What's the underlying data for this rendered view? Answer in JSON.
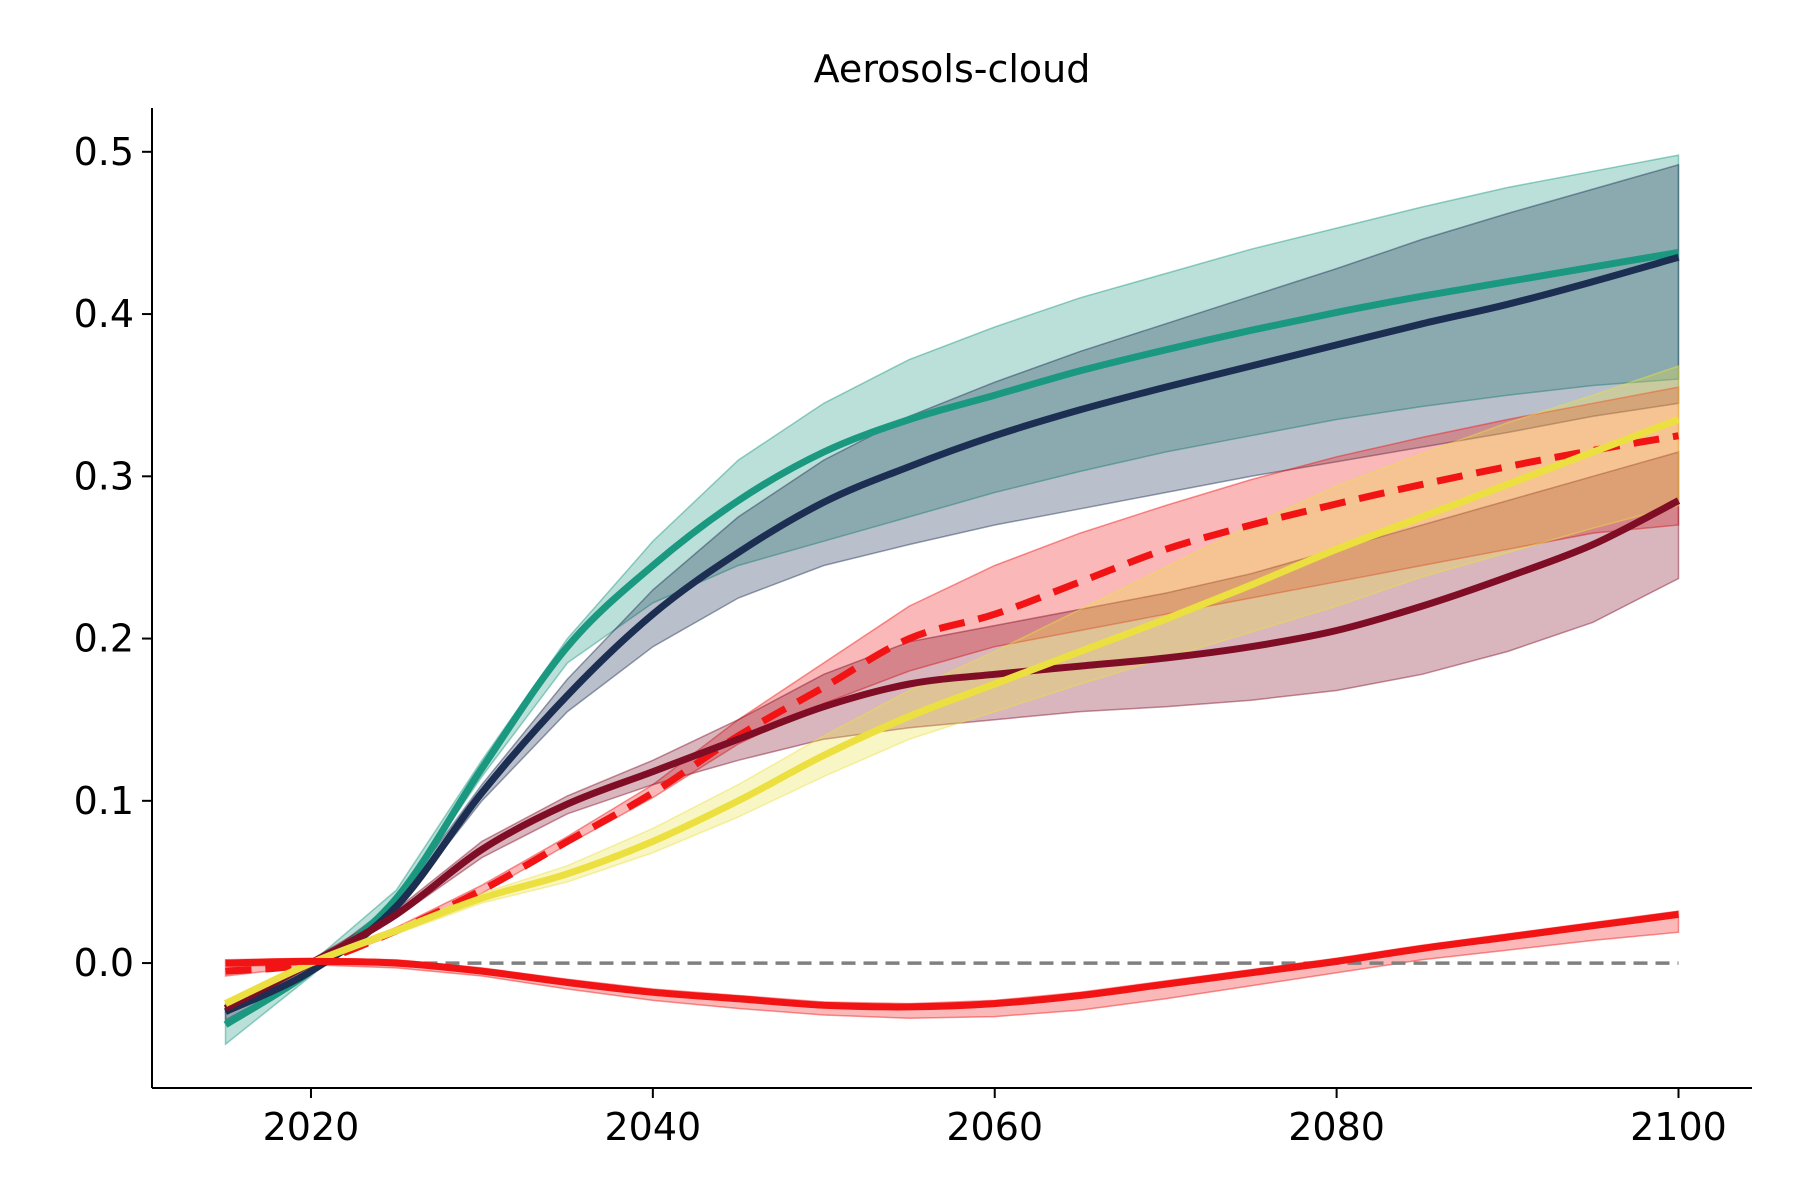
{
  "chart_data": {
    "type": "line",
    "title": "Aerosols-cloud",
    "xlabel": "",
    "ylabel": "",
    "xlim": [
      2010.7,
      2104.3
    ],
    "ylim": [
      -0.077,
      0.527
    ],
    "x_ticks": [
      2020,
      2040,
      2060,
      2080,
      2100
    ],
    "y_ticks": [
      0.0,
      0.1,
      0.2,
      0.3,
      0.4,
      0.5
    ],
    "y_tick_labels": [
      "0.0",
      "0.1",
      "0.2",
      "0.3",
      "0.4",
      "0.5"
    ],
    "grid": false,
    "legend": "none",
    "reference_line": {
      "y": 0.0,
      "style": "dashed",
      "color": "#808080"
    },
    "x": [
      2015,
      2020,
      2025,
      2030,
      2035,
      2040,
      2045,
      2050,
      2055,
      2060,
      2065,
      2070,
      2075,
      2080,
      2085,
      2090,
      2095,
      2100
    ],
    "series": [
      {
        "color": "#1a9980",
        "style": "solid",
        "values": [
          -0.038,
          -0.005,
          0.04,
          0.12,
          0.195,
          0.245,
          0.285,
          0.315,
          0.335,
          0.35,
          0.365,
          0.378,
          0.39,
          0.401,
          0.411,
          0.42,
          0.429,
          0.438
        ],
        "band": {
          "lower": [
            -0.05,
            -0.008,
            0.038,
            0.115,
            0.185,
            0.222,
            0.245,
            0.26,
            0.275,
            0.29,
            0.303,
            0.315,
            0.325,
            0.335,
            0.343,
            0.35,
            0.356,
            0.36
          ],
          "upper": [
            -0.03,
            0.0,
            0.045,
            0.125,
            0.2,
            0.26,
            0.31,
            0.345,
            0.372,
            0.392,
            0.41,
            0.425,
            0.44,
            0.453,
            0.466,
            0.478,
            0.488,
            0.498
          ]
        }
      },
      {
        "color": "#1c2e52",
        "style": "solid",
        "values": [
          -0.03,
          -0.005,
          0.035,
          0.105,
          0.165,
          0.215,
          0.253,
          0.284,
          0.306,
          0.325,
          0.341,
          0.355,
          0.368,
          0.381,
          0.394,
          0.406,
          0.42,
          0.435
        ],
        "band": {
          "lower": [
            -0.035,
            -0.007,
            0.033,
            0.1,
            0.155,
            0.195,
            0.225,
            0.245,
            0.258,
            0.27,
            0.28,
            0.29,
            0.3,
            0.309,
            0.318,
            0.327,
            0.337,
            0.345
          ],
          "upper": [
            -0.027,
            -0.002,
            0.038,
            0.11,
            0.175,
            0.23,
            0.275,
            0.31,
            0.337,
            0.358,
            0.377,
            0.394,
            0.411,
            0.428,
            0.446,
            0.462,
            0.477,
            0.492
          ]
        }
      },
      {
        "color": "#f21414",
        "style": "dashed",
        "values": [
          -0.005,
          0.0,
          0.02,
          0.045,
          0.075,
          0.105,
          0.14,
          0.17,
          0.2,
          0.215,
          0.235,
          0.255,
          0.27,
          0.283,
          0.295,
          0.306,
          0.316,
          0.325
        ],
        "band": {
          "lower": [
            -0.008,
            -0.002,
            0.018,
            0.043,
            0.073,
            0.102,
            0.135,
            0.16,
            0.18,
            0.195,
            0.205,
            0.215,
            0.225,
            0.235,
            0.245,
            0.255,
            0.265,
            0.27
          ],
          "upper": [
            -0.003,
            0.002,
            0.022,
            0.048,
            0.078,
            0.11,
            0.15,
            0.185,
            0.22,
            0.245,
            0.265,
            0.282,
            0.298,
            0.312,
            0.324,
            0.335,
            0.345,
            0.355
          ]
        }
      },
      {
        "color": "#800d26",
        "style": "solid",
        "values": [
          -0.028,
          0.0,
          0.03,
          0.07,
          0.098,
          0.118,
          0.138,
          0.158,
          0.172,
          0.178,
          0.183,
          0.188,
          0.195,
          0.205,
          0.22,
          0.238,
          0.258,
          0.285
        ],
        "band": {
          "lower": [
            -0.03,
            -0.002,
            0.028,
            0.065,
            0.092,
            0.11,
            0.125,
            0.138,
            0.145,
            0.15,
            0.155,
            0.158,
            0.162,
            0.168,
            0.178,
            0.192,
            0.21,
            0.237
          ],
          "upper": [
            -0.025,
            0.002,
            0.033,
            0.075,
            0.103,
            0.125,
            0.15,
            0.178,
            0.198,
            0.208,
            0.218,
            0.228,
            0.24,
            0.255,
            0.27,
            0.285,
            0.3,
            0.315
          ]
        }
      },
      {
        "color": "#ece040",
        "style": "solid",
        "values": [
          -0.025,
          0.0,
          0.02,
          0.04,
          0.055,
          0.075,
          0.1,
          0.128,
          0.152,
          0.172,
          0.192,
          0.212,
          0.233,
          0.255,
          0.275,
          0.295,
          0.315,
          0.335
        ],
        "band": {
          "lower": [
            -0.027,
            -0.002,
            0.018,
            0.037,
            0.05,
            0.068,
            0.09,
            0.115,
            0.138,
            0.155,
            0.172,
            0.188,
            0.204,
            0.22,
            0.238,
            0.253,
            0.268,
            0.282
          ],
          "upper": [
            -0.023,
            0.002,
            0.022,
            0.043,
            0.06,
            0.083,
            0.11,
            0.14,
            0.168,
            0.192,
            0.218,
            0.244,
            0.27,
            0.294,
            0.314,
            0.333,
            0.35,
            0.368
          ]
        }
      },
      {
        "color": "#f21414",
        "style": "solid",
        "values": [
          0.0,
          0.001,
          0.0,
          -0.005,
          -0.012,
          -0.018,
          -0.022,
          -0.026,
          -0.027,
          -0.025,
          -0.02,
          -0.013,
          -0.006,
          0.001,
          0.009,
          0.016,
          0.023,
          0.03
        ],
        "band": {
          "lower": [
            -0.002,
            -0.001,
            -0.003,
            -0.008,
            -0.016,
            -0.023,
            -0.028,
            -0.032,
            -0.034,
            -0.033,
            -0.029,
            -0.022,
            -0.014,
            -0.006,
            0.002,
            0.008,
            0.014,
            0.019
          ],
          "upper": [
            0.002,
            0.003,
            0.002,
            -0.003,
            -0.01,
            -0.016,
            -0.02,
            -0.024,
            -0.025,
            -0.023,
            -0.018,
            -0.011,
            -0.004,
            0.003,
            0.011,
            0.018,
            0.025,
            0.032
          ]
        }
      }
    ]
  }
}
